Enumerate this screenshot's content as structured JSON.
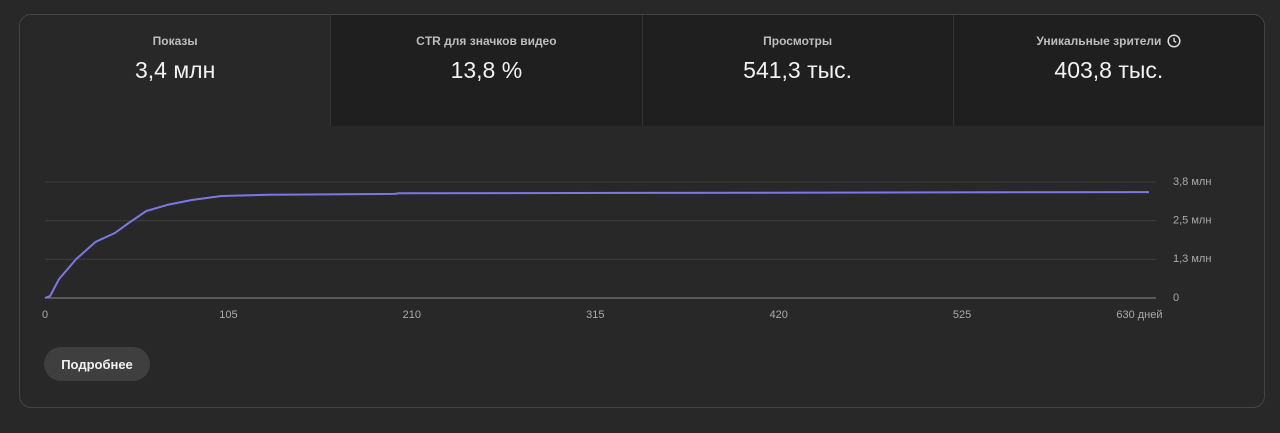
{
  "tabs": [
    {
      "label": "Показы",
      "value": "3,4 млн"
    },
    {
      "label": "CTR для значков видео",
      "value": "13,8 %"
    },
    {
      "label": "Просмотры",
      "value": "541,3 тыс."
    },
    {
      "label": "Уникальные зрители",
      "value": "403,8 тыс."
    }
  ],
  "chart_data": {
    "type": "line",
    "color": "#7b78e6",
    "grid": true,
    "x": [
      0,
      3,
      8,
      18,
      29,
      40,
      48,
      58,
      70,
      84,
      101,
      128,
      200,
      203,
      513,
      632
    ],
    "values": [
      0,
      0.07,
      0.62,
      1.28,
      1.84,
      2.13,
      2.46,
      2.85,
      3.05,
      3.21,
      3.34,
      3.38,
      3.41,
      3.43,
      3.46,
      3.47
    ],
    "xlim": [
      0,
      636
    ],
    "xticks": [
      0,
      105,
      210,
      315,
      420,
      525,
      {
        "value": 630,
        "label": "630 дней"
      }
    ],
    "ylim": [
      0,
      3.8
    ],
    "yticks": [
      0,
      {
        "value": 1.27,
        "label": "1,3 млн"
      },
      {
        "value": 2.53,
        "label": "2,5 млн"
      },
      {
        "value": 3.8,
        "label": "3,8 млн"
      }
    ]
  },
  "button": "Подробнее"
}
